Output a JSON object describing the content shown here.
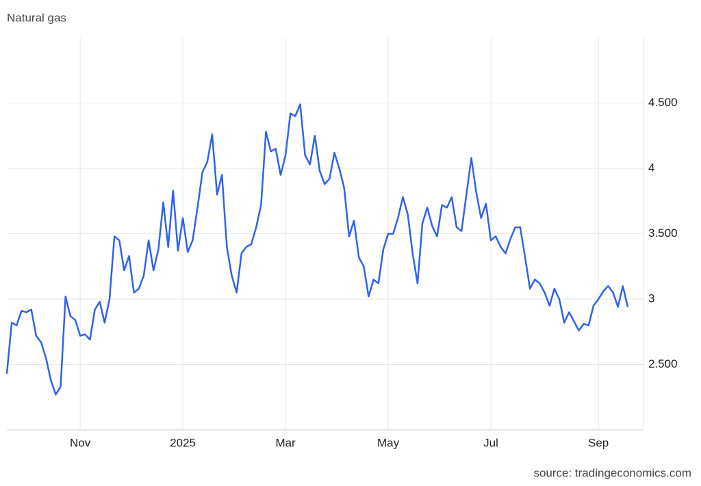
{
  "chart_data": {
    "type": "line",
    "title": "Natural gas",
    "source": "source: tradingeconomics.com",
    "categories": [
      null,
      null,
      null,
      null,
      null,
      null,
      null,
      null,
      null,
      null,
      null,
      null,
      null,
      null,
      null,
      "Nov",
      null,
      null,
      null,
      null,
      null,
      null,
      null,
      null,
      null,
      null,
      null,
      null,
      null,
      null,
      null,
      null,
      null,
      null,
      null,
      null,
      "2025",
      null,
      null,
      null,
      null,
      null,
      null,
      null,
      null,
      null,
      null,
      null,
      null,
      null,
      null,
      null,
      null,
      null,
      null,
      null,
      null,
      "Mar",
      null,
      null,
      null,
      null,
      null,
      null,
      null,
      null,
      null,
      null,
      null,
      null,
      null,
      null,
      null,
      null,
      null,
      null,
      null,
      null,
      "May",
      null,
      null,
      null,
      null,
      null,
      null,
      null,
      null,
      null,
      null,
      null,
      null,
      null,
      null,
      null,
      null,
      null,
      null,
      null,
      null,
      "Jul",
      null,
      null,
      null,
      null,
      null,
      null,
      null,
      null,
      null,
      null,
      null,
      null,
      null,
      null,
      null,
      null,
      null,
      null,
      null,
      null,
      null,
      "Sep",
      null,
      null,
      null,
      null,
      null,
      null
    ],
    "values": [
      2.43,
      2.82,
      2.8,
      2.91,
      2.9,
      2.92,
      2.72,
      2.67,
      2.55,
      2.38,
      2.27,
      2.33,
      3.02,
      2.87,
      2.84,
      2.72,
      2.73,
      2.69,
      2.92,
      2.98,
      2.82,
      3.0,
      3.48,
      3.45,
      3.22,
      3.33,
      3.05,
      3.08,
      3.18,
      3.45,
      3.22,
      3.38,
      3.74,
      3.4,
      3.83,
      3.37,
      3.62,
      3.36,
      3.45,
      3.7,
      3.97,
      4.05,
      4.26,
      3.8,
      3.95,
      3.4,
      3.18,
      3.05,
      3.35,
      3.4,
      3.42,
      3.55,
      3.72,
      4.28,
      4.13,
      4.15,
      3.95,
      4.1,
      4.42,
      4.4,
      4.49,
      4.1,
      4.03,
      4.25,
      3.98,
      3.88,
      3.92,
      4.12,
      4.0,
      3.85,
      3.48,
      3.6,
      3.32,
      3.25,
      3.02,
      3.15,
      3.12,
      3.38,
      3.5,
      3.5,
      3.62,
      3.78,
      3.65,
      3.35,
      3.12,
      3.58,
      3.7,
      3.56,
      3.48,
      3.72,
      3.7,
      3.78,
      3.55,
      3.52,
      3.8,
      4.08,
      3.82,
      3.62,
      3.73,
      3.45,
      3.48,
      3.4,
      3.35,
      3.46,
      3.55,
      3.55,
      3.32,
      3.08,
      3.15,
      3.12,
      3.05,
      2.95,
      3.08,
      3.0,
      2.82,
      2.9,
      2.83,
      2.76,
      2.81,
      2.8,
      2.95,
      3.0,
      3.06,
      3.1,
      3.05,
      2.94,
      3.1,
      2.94
    ],
    "color": "#2e62f0",
    "ylim": [
      2,
      5
    ],
    "yticks": [
      {
        "value": 2.5,
        "label": "2.500"
      },
      3,
      {
        "value": 3.5,
        "label": "3.500"
      },
      4,
      {
        "value": 4.5,
        "label": "4.500"
      }
    ],
    "grid": true
  }
}
